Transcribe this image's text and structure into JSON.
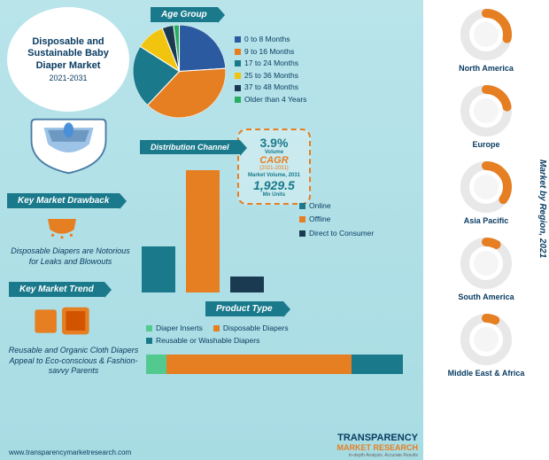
{
  "title": "Disposable and Sustainable Baby Diaper Market",
  "year_range": "2021-2031",
  "colors": {
    "bg": "#b8e4ea",
    "teal": "#1a7a8c",
    "orange": "#e67e22",
    "dark_navy": "#1a3a52",
    "navy": "#2c5aa0",
    "yellow": "#f1c40f",
    "green": "#27ae60",
    "light_green": "#52c98f"
  },
  "age_group": {
    "label": "Age Group",
    "items": [
      {
        "label": "0 to 8 Months",
        "color": "#2c5aa0",
        "pct": 24
      },
      {
        "label": "9 to 16 Months",
        "color": "#e67e22",
        "pct": 38
      },
      {
        "label": "17 to 24 Months",
        "color": "#1a7a8c",
        "pct": 22
      },
      {
        "label": "25 to 36 Months",
        "color": "#f1c40f",
        "pct": 10
      },
      {
        "label": "37 to 48 Months",
        "color": "#1a3a52",
        "pct": 4
      },
      {
        "label": "Older than 4 Years",
        "color": "#27ae60",
        "pct": 2
      }
    ]
  },
  "cagr": {
    "pct": "3.9%",
    "pct_label": "Volume",
    "cagr_label": "CAGR",
    "cagr_years": "(2021-2031)",
    "vol_label": "Market Volume, 2031",
    "vol": "1,929.5",
    "vol_unit": "Mn Units"
  },
  "distribution": {
    "label": "Distribution Channel",
    "items": [
      {
        "label": "Online",
        "color": "#1a7a8c",
        "height": 52
      },
      {
        "label": "Offline",
        "color": "#e67e22",
        "height": 138
      },
      {
        "label": "Direct to Consumer",
        "color": "#1a3a52",
        "height": 18
      }
    ]
  },
  "drawback": {
    "label": "Key Market Drawback",
    "text": "Disposable Diapers are Notorious for Leaks and Blowouts"
  },
  "trend": {
    "label": "Key Market Trend",
    "text": "Reusable and Organic Cloth Diapers Appeal to Eco-conscious & Fashion-savvy Parents"
  },
  "product": {
    "label": "Product Type",
    "items": [
      {
        "label": "Diaper Inserts",
        "color": "#52c98f",
        "pct": 8
      },
      {
        "label": "Disposable Diapers",
        "color": "#e67e22",
        "pct": 72
      },
      {
        "label": "Reusable or Washable Diapers",
        "color": "#1a7a8c",
        "pct": 20
      }
    ]
  },
  "regions": {
    "title": "Market by Region, 2021",
    "items": [
      {
        "label": "North America",
        "pct": 28
      },
      {
        "label": "Europe",
        "pct": 22
      },
      {
        "label": "Asia Pacific",
        "pct": 35
      },
      {
        "label": "South America",
        "pct": 8
      },
      {
        "label": "Middle East & Africa",
        "pct": 7
      }
    ]
  },
  "footer": "www.transparencymarketresearch.com",
  "logo": {
    "t": "TRANSPARENCY",
    "m": "MARKET RESEARCH",
    "s": "In-depth Analysis. Accurate Results"
  }
}
